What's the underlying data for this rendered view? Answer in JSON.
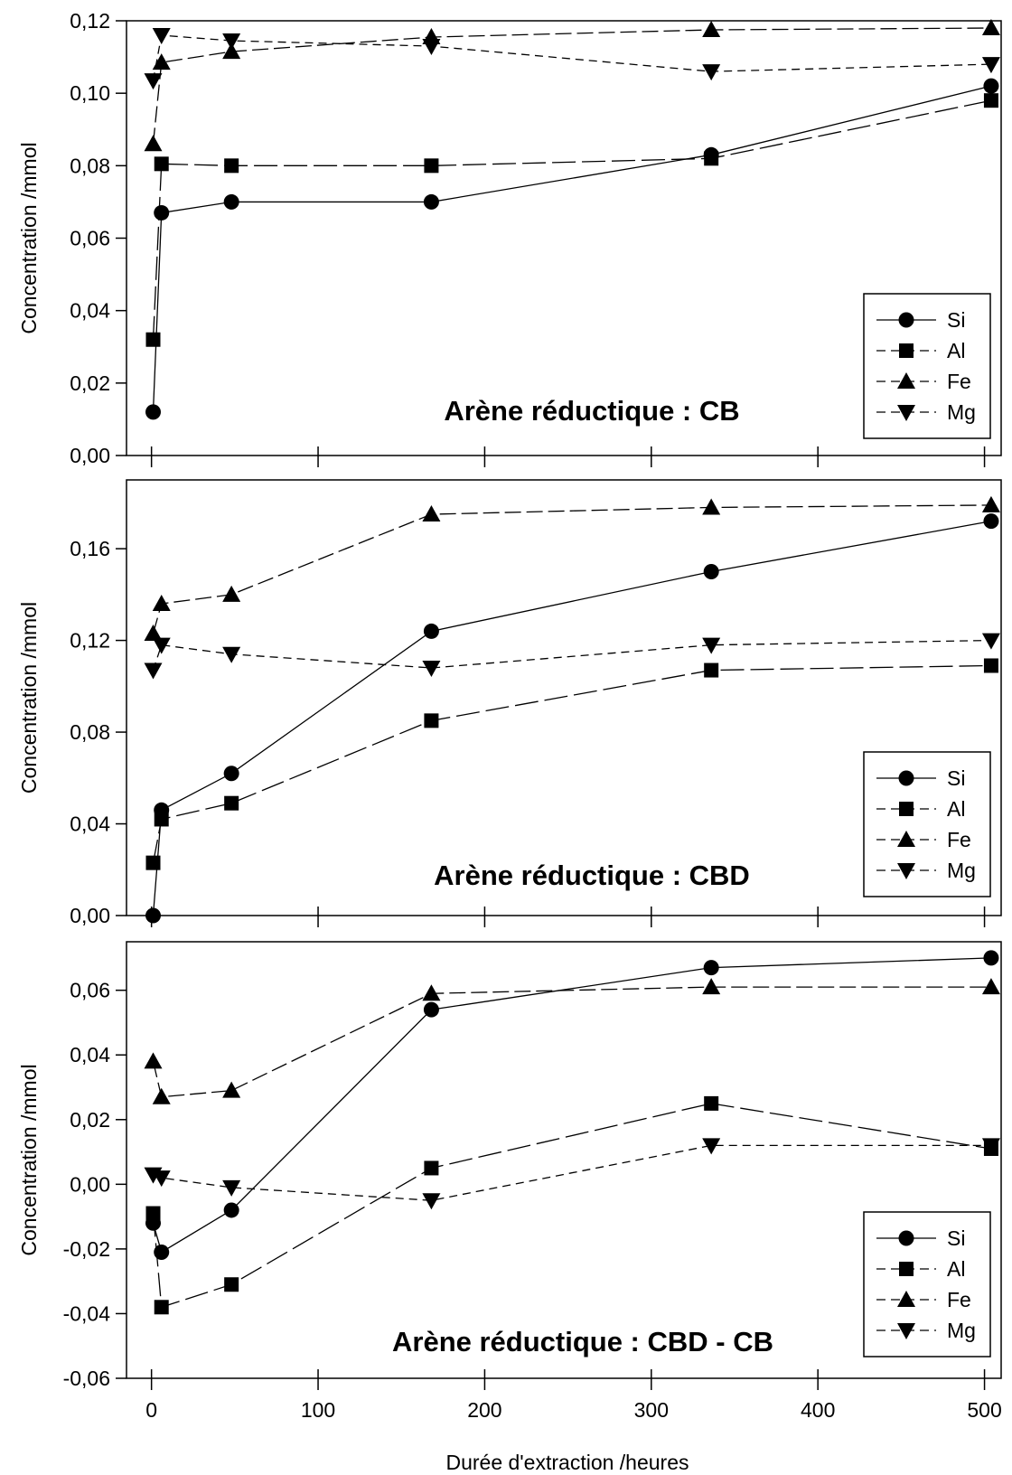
{
  "chart_data": [
    {
      "type": "line",
      "title": "Arène réductique : CB",
      "xlabel": "",
      "ylabel": "Concentration /mmol",
      "xlim": [
        -15,
        510
      ],
      "ylim": [
        0,
        0.12
      ],
      "yticks": [
        0,
        0.02,
        0.04,
        0.06,
        0.08,
        0.1,
        0.12
      ],
      "ytick_labels": [
        "0,00",
        "0,02",
        "0,04",
        "0,06",
        "0,08",
        "0,10",
        "0,12"
      ],
      "xticks": [
        0,
        100,
        200,
        300,
        400,
        500
      ],
      "xtick_labels": [],
      "legend_position": "bottom-right",
      "series": [
        {
          "name": "Si",
          "marker": "circle",
          "dash": "solid",
          "x": [
            1,
            6,
            48,
            168,
            336,
            504
          ],
          "y": [
            0.012,
            0.067,
            0.07,
            0.07,
            0.083,
            0.102
          ]
        },
        {
          "name": "Al",
          "marker": "square",
          "dash": "long",
          "x": [
            1,
            6,
            48,
            168,
            336,
            504
          ],
          "y": [
            0.032,
            0.0805,
            0.08,
            0.08,
            0.082,
            0.098
          ]
        },
        {
          "name": "Fe",
          "marker": "triangle-up",
          "dash": "medium",
          "x": [
            1,
            6,
            48,
            168,
            336,
            504
          ],
          "y": [
            0.086,
            0.1085,
            0.1115,
            0.1155,
            0.1175,
            0.118
          ]
        },
        {
          "name": "Mg",
          "marker": "triangle-down",
          "dash": "short",
          "x": [
            1,
            6,
            48,
            168,
            336,
            504
          ],
          "y": [
            0.1035,
            0.116,
            0.1145,
            0.113,
            0.106,
            0.108
          ]
        }
      ]
    },
    {
      "type": "line",
      "title": "Arène réductique : CBD",
      "xlabel": "",
      "ylabel": "Concentration /mmol",
      "xlim": [
        -15,
        510
      ],
      "ylim": [
        0,
        0.19
      ],
      "yticks": [
        0,
        0.04,
        0.08,
        0.12,
        0.16
      ],
      "ytick_labels": [
        "0,00",
        "0,04",
        "0,08",
        "0,12",
        "0,16"
      ],
      "xticks": [
        0,
        100,
        200,
        300,
        400,
        500
      ],
      "xtick_labels": [],
      "legend_position": "bottom-right",
      "series": [
        {
          "name": "Si",
          "marker": "circle",
          "dash": "solid",
          "x": [
            1,
            6,
            48,
            168,
            336,
            504
          ],
          "y": [
            0.0,
            0.046,
            0.062,
            0.124,
            0.15,
            0.172
          ]
        },
        {
          "name": "Al",
          "marker": "square",
          "dash": "long",
          "x": [
            1,
            6,
            48,
            168,
            336,
            504
          ],
          "y": [
            0.023,
            0.042,
            0.049,
            0.085,
            0.107,
            0.109
          ]
        },
        {
          "name": "Fe",
          "marker": "triangle-up",
          "dash": "medium",
          "x": [
            1,
            6,
            48,
            168,
            336,
            504
          ],
          "y": [
            0.123,
            0.136,
            0.14,
            0.175,
            0.178,
            0.179
          ]
        },
        {
          "name": "Mg",
          "marker": "triangle-down",
          "dash": "short",
          "x": [
            1,
            6,
            48,
            168,
            336,
            504
          ],
          "y": [
            0.107,
            0.118,
            0.114,
            0.108,
            0.118,
            0.12
          ]
        }
      ]
    },
    {
      "type": "line",
      "title": "Arène réductique : CBD - CB",
      "xlabel": "Durée d'extraction   /heures",
      "ylabel": "Concentration /mmol",
      "xlim": [
        -15,
        510
      ],
      "ylim": [
        -0.06,
        0.075
      ],
      "yticks": [
        -0.06,
        -0.04,
        -0.02,
        0,
        0.02,
        0.04,
        0.06
      ],
      "ytick_labels": [
        "-0,06",
        "-0,04",
        "-0,02",
        "0,00",
        "0,02",
        "0,04",
        "0,06"
      ],
      "xticks": [
        0,
        100,
        200,
        300,
        400,
        500
      ],
      "xtick_labels": [
        "0",
        "100",
        "200",
        "300",
        "400",
        "500"
      ],
      "legend_position": "bottom-right",
      "series": [
        {
          "name": "Si",
          "marker": "circle",
          "dash": "solid",
          "x": [
            1,
            6,
            48,
            168,
            336,
            504
          ],
          "y": [
            -0.012,
            -0.021,
            -0.008,
            0.054,
            0.067,
            0.07
          ]
        },
        {
          "name": "Al",
          "marker": "square",
          "dash": "long",
          "x": [
            1,
            6,
            48,
            168,
            336,
            504
          ],
          "y": [
            -0.009,
            -0.038,
            -0.031,
            0.005,
            0.025,
            0.011
          ]
        },
        {
          "name": "Fe",
          "marker": "triangle-up",
          "dash": "medium",
          "x": [
            1,
            6,
            48,
            168,
            336,
            504
          ],
          "y": [
            0.038,
            0.027,
            0.029,
            0.059,
            0.061,
            0.061
          ]
        },
        {
          "name": "Mg",
          "marker": "triangle-down",
          "dash": "short",
          "x": [
            1,
            6,
            48,
            168,
            336,
            504
          ],
          "y": [
            0.003,
            0.002,
            -0.001,
            -0.005,
            0.012,
            0.012
          ]
        }
      ]
    }
  ]
}
